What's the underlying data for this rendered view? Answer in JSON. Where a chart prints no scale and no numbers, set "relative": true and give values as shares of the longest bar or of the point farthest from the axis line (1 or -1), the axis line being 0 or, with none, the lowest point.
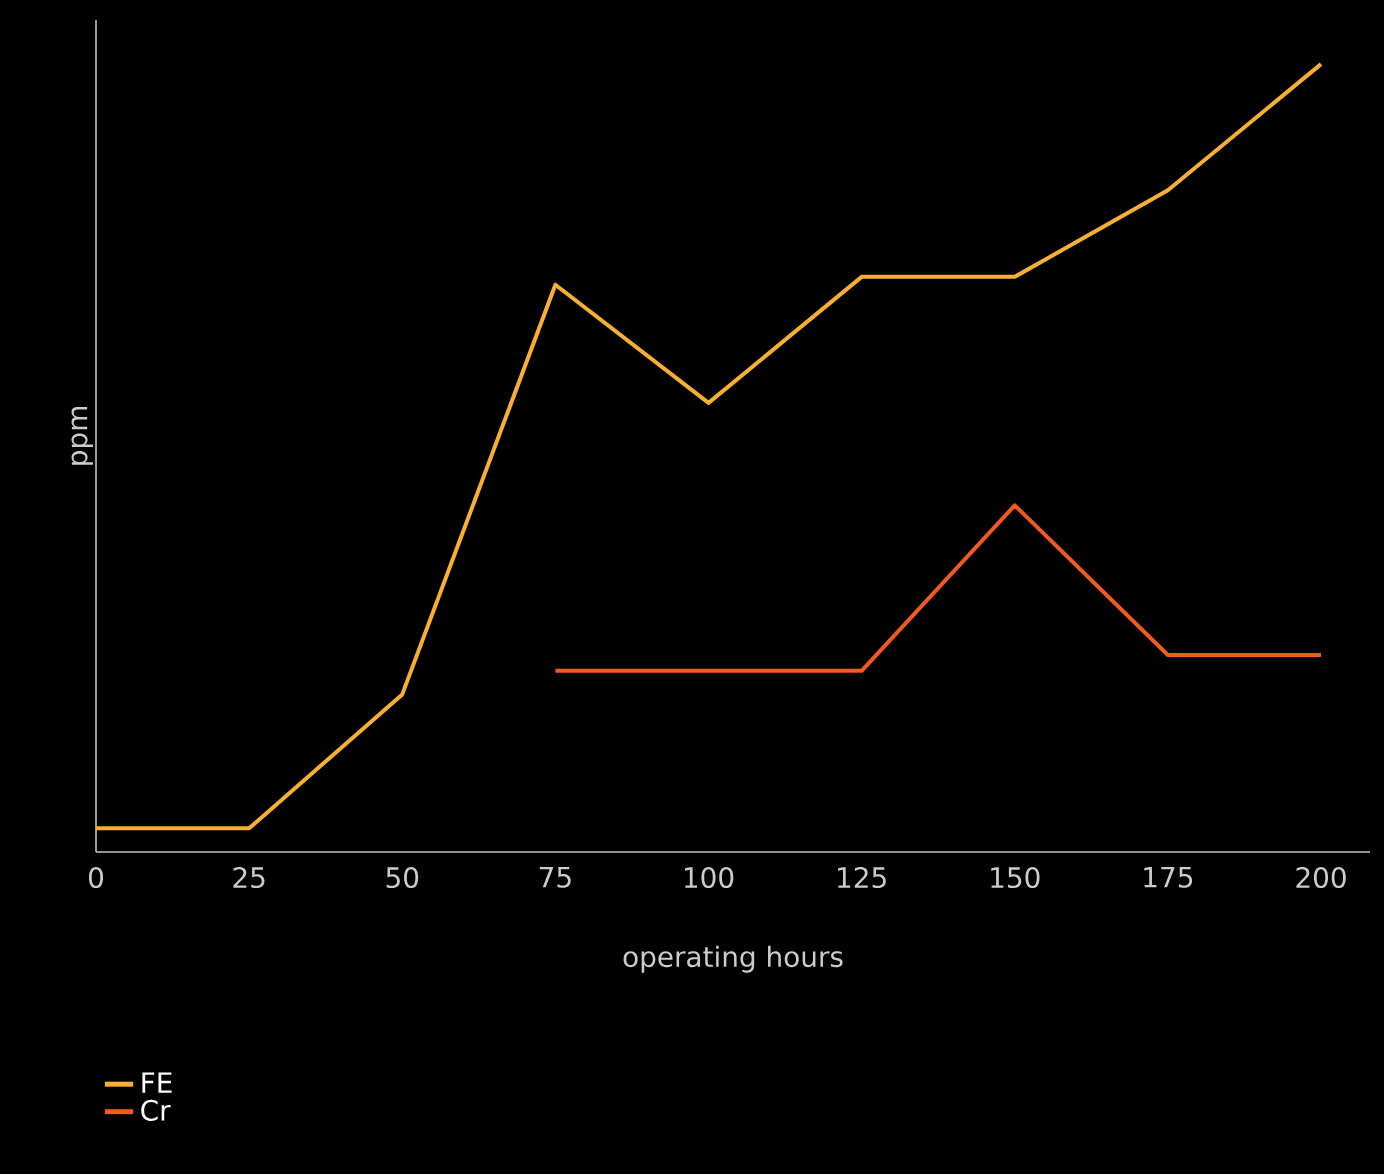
{
  "chart_data": {
    "type": "line",
    "relative": true,
    "xlabel": "operating hours",
    "ylabel": "ppm",
    "xlim": [
      0,
      208
    ],
    "xticks": [
      0,
      25,
      50,
      75,
      100,
      125,
      150,
      175,
      200
    ],
    "legend": "bottom left",
    "grid": false,
    "marker": "none",
    "line_style": "solid",
    "series": [
      {
        "name": "FE",
        "color": "#fbb034",
        "x": [
          0,
          25,
          50,
          75,
          100,
          125,
          150,
          175,
          200
        ],
        "values": [
          0.03,
          0.03,
          0.2,
          0.72,
          0.57,
          0.73,
          0.73,
          0.84,
          1
        ]
      },
      {
        "name": "Cr",
        "color": "#f15a22",
        "x": [
          75,
          100,
          125,
          150,
          175,
          200
        ],
        "values": [
          0.23,
          0.23,
          0.23,
          0.44,
          0.25,
          0.25
        ]
      }
    ]
  }
}
